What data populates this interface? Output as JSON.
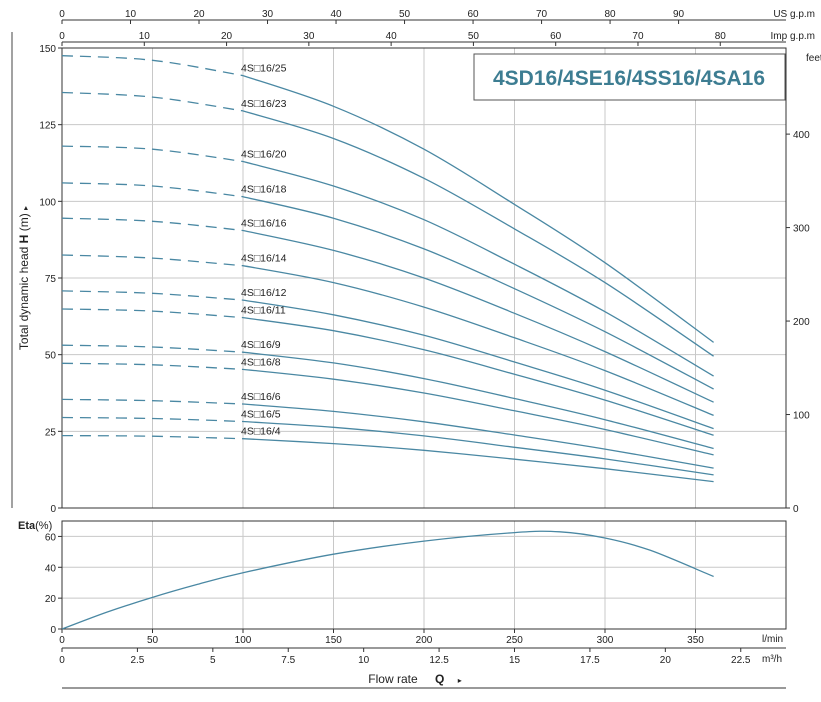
{
  "chart_data": [
    {
      "type": "line",
      "title": "4SD16/4SE16/4SS16/4SA16",
      "ylabel": "Total dynamic head",
      "ylabel_symbol": "H",
      "ylabel_unit": "(m)",
      "ylim": [
        0,
        150
      ],
      "y_ticks": [
        0,
        25,
        50,
        75,
        100,
        125,
        150
      ],
      "right_axis": {
        "label": "feet",
        "ticks": [
          0,
          100,
          200,
          300,
          400
        ]
      },
      "top_axes": [
        {
          "label": "US g.p.m",
          "ticks": [
            0,
            10,
            20,
            30,
            40,
            50,
            60,
            70,
            80,
            90
          ]
        },
        {
          "label": "Imp g.p.m",
          "ticks": [
            0,
            10,
            20,
            30,
            40,
            50,
            60,
            70,
            80
          ]
        }
      ],
      "x_unit": "l/min",
      "xlim": [
        0,
        400
      ],
      "grid": true,
      "dashed_until_x": 100,
      "series": [
        {
          "name": "4S□16/25",
          "x": [
            0,
            50,
            100,
            150,
            200,
            250,
            300,
            360
          ],
          "values": [
            147.5,
            146,
            141,
            131,
            117,
            99,
            80,
            54
          ]
        },
        {
          "name": "4S□16/23",
          "x": [
            0,
            50,
            100,
            150,
            200,
            250,
            300,
            360
          ],
          "values": [
            135.5,
            134,
            129.5,
            120.5,
            107.5,
            91,
            73.5,
            49.5
          ]
        },
        {
          "name": "4S□16/20",
          "x": [
            0,
            50,
            100,
            150,
            200,
            250,
            300,
            360
          ],
          "values": [
            118,
            117,
            113,
            105,
            94,
            79.5,
            64,
            43
          ]
        },
        {
          "name": "4S□16/18",
          "x": [
            0,
            50,
            100,
            150,
            200,
            250,
            300,
            360
          ],
          "values": [
            106,
            105,
            101.5,
            94.5,
            84.5,
            71.5,
            57.5,
            38.8
          ]
        },
        {
          "name": "4S□16/16",
          "x": [
            0,
            50,
            100,
            150,
            200,
            250,
            300,
            360
          ],
          "values": [
            94.5,
            93.5,
            90.5,
            84,
            75,
            63.5,
            51,
            34.5
          ]
        },
        {
          "name": "4S□16/14",
          "x": [
            0,
            50,
            100,
            150,
            200,
            250,
            300,
            360
          ],
          "values": [
            82.5,
            81.5,
            79,
            73.5,
            65.5,
            55.5,
            44.8,
            30.2
          ]
        },
        {
          "name": "4S□16/12",
          "x": [
            0,
            50,
            100,
            150,
            200,
            250,
            300,
            360
          ],
          "values": [
            70.8,
            70,
            67.8,
            63,
            56.3,
            47.6,
            38.4,
            25.9
          ]
        },
        {
          "name": "4S□16/11",
          "x": [
            0,
            50,
            100,
            150,
            200,
            250,
            300,
            360
          ],
          "values": [
            64.9,
            64.2,
            62.1,
            57.8,
            51.6,
            43.6,
            35.2,
            23.7
          ]
        },
        {
          "name": "4S□16/9",
          "x": [
            0,
            50,
            100,
            150,
            200,
            250,
            300,
            360
          ],
          "values": [
            53.1,
            52.5,
            50.8,
            47.3,
            42.2,
            35.7,
            28.8,
            19.4
          ]
        },
        {
          "name": "4S□16/8",
          "x": [
            0,
            50,
            100,
            150,
            200,
            250,
            300,
            360
          ],
          "values": [
            47.2,
            46.7,
            45.2,
            42,
            37.5,
            31.7,
            25.6,
            17.3
          ]
        },
        {
          "name": "4S□16/6",
          "x": [
            0,
            50,
            100,
            150,
            200,
            250,
            300,
            360
          ],
          "values": [
            35.4,
            35,
            33.9,
            31.5,
            28.1,
            23.8,
            19.2,
            13
          ]
        },
        {
          "name": "4S□16/5",
          "x": [
            0,
            50,
            100,
            150,
            200,
            250,
            300,
            360
          ],
          "values": [
            29.5,
            29.2,
            28.2,
            26.3,
            23.5,
            19.8,
            16,
            10.8
          ]
        },
        {
          "name": "4S□16/4",
          "x": [
            0,
            50,
            100,
            150,
            200,
            250,
            300,
            360
          ],
          "values": [
            23.6,
            23.4,
            22.6,
            21,
            18.8,
            15.9,
            12.8,
            8.6
          ]
        }
      ]
    },
    {
      "type": "line",
      "ylabel": "Eta",
      "ylabel_unit": "(%)",
      "ylim": [
        0,
        70
      ],
      "y_ticks": [
        0,
        20,
        40,
        60
      ],
      "grid": true,
      "x_unit": "l/min",
      "x_ticks": [
        0,
        50,
        100,
        150,
        200,
        250,
        300,
        350
      ],
      "x2_unit": "m³/h",
      "x2_ticks": [
        "0",
        "2.5",
        "5",
        "7.5",
        "10",
        "12.5",
        "15",
        "17.5",
        "20",
        "22.5"
      ],
      "xlabel": "Flow rate",
      "xlabel_symbol": "Q",
      "series": [
        {
          "x": [
            0,
            25,
            50,
            75,
            100,
            150,
            200,
            250,
            275,
            300,
            325,
            360
          ],
          "values": [
            0,
            11,
            20.5,
            29,
            36.5,
            48.5,
            57,
            62.5,
            63,
            59,
            51,
            34
          ]
        }
      ]
    }
  ],
  "colors": {
    "curve": "#4a88a3",
    "title": "#3d7d92",
    "grid": "#c8c8c8",
    "axis": "#333333"
  }
}
